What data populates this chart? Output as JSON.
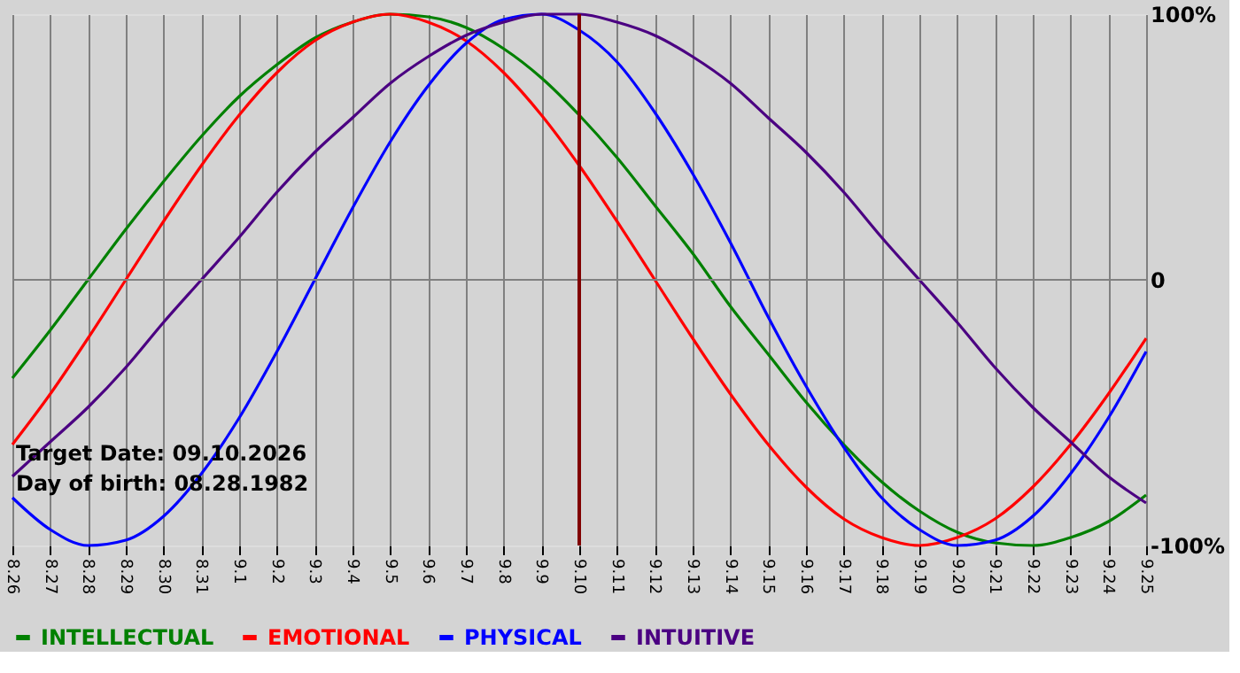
{
  "chart_data": {
    "type": "line",
    "categories": [
      "8.26",
      "8.27",
      "8.28",
      "8.29",
      "8.30",
      "8.31",
      "9.1",
      "9.2",
      "9.3",
      "9.4",
      "9.5",
      "9.6",
      "9.7",
      "9.8",
      "9.9",
      "9.10",
      "9.11",
      "9.12",
      "9.13",
      "9.14",
      "9.15",
      "9.16",
      "9.17",
      "9.18",
      "9.19",
      "9.20",
      "9.21",
      "9.22",
      "9.23",
      "9.24",
      "9.25"
    ],
    "series": [
      {
        "name": "INTELLECTUAL",
        "color": "#008000",
        "values": [
          -37,
          -19,
          0,
          19,
          37,
          54,
          69,
          81,
          91,
          97,
          100,
          99,
          95,
          87,
          76,
          62,
          46,
          28,
          10,
          -10,
          -28,
          -46,
          -62,
          -76,
          -87,
          -95,
          -99,
          -100,
          -97,
          -91,
          -81
        ]
      },
      {
        "name": "EMOTIONAL",
        "color": "#ff0000",
        "values": [
          -62,
          -43,
          -22,
          0,
          22,
          43,
          62,
          78,
          90,
          97,
          100,
          97,
          90,
          78,
          62,
          43,
          22,
          0,
          -22,
          -43,
          -62,
          -78,
          -90,
          -97,
          -100,
          -97,
          -90,
          -78,
          -62,
          -43,
          -22
        ]
      },
      {
        "name": "PHYSICAL",
        "color": "#0000ff",
        "values": [
          -82,
          -94,
          -100,
          -98,
          -89,
          -73,
          -52,
          -27,
          0,
          27,
          52,
          73,
          89,
          98,
          100,
          94,
          82,
          63,
          40,
          14,
          -14,
          -40,
          -63,
          -82,
          -94,
          -100,
          -98,
          -89,
          -73,
          -52,
          -27
        ]
      },
      {
        "name": "INTUITIVE",
        "color": "#4b0082",
        "values": [
          -74,
          -61,
          -48,
          -33,
          -16,
          0,
          16,
          33,
          48,
          61,
          74,
          84,
          92,
          97,
          100,
          100,
          97,
          92,
          84,
          74,
          61,
          48,
          33,
          16,
          0,
          -16,
          -33,
          -48,
          -61,
          -74,
          -84
        ]
      }
    ],
    "ylim": [
      -100,
      100
    ],
    "yticks": [
      {
        "value": 100,
        "label": "100%"
      },
      0,
      {
        "value": -100,
        "label": "-100%"
      }
    ],
    "grid": "x",
    "legend": "bottom",
    "marker": "none",
    "line_style": "solid",
    "ref_lines": [
      {
        "axis": "y",
        "value": 0,
        "color": "#808080"
      },
      {
        "axis": "x",
        "value": "9.10",
        "color": "#800000"
      }
    ],
    "annotations": [
      "Target Date: 09.10.2026",
      "Day of birth: 08.28.1982"
    ]
  }
}
